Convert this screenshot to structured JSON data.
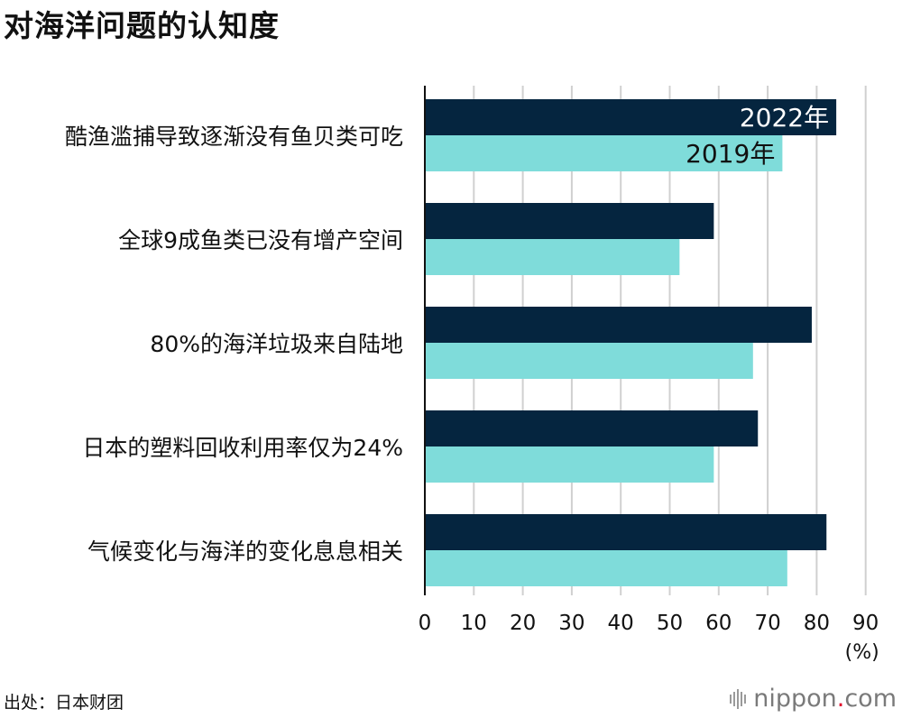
{
  "title": "对海洋问题的认知度",
  "source": "出处：日本财团",
  "brand": {
    "name": "nippon",
    "dot": ".",
    "tld": "com"
  },
  "colors": {
    "s2022": "#05253f",
    "s2019": "#7fdcda",
    "grid": "#d0d0d0",
    "axis": "#111111"
  },
  "chart_data": {
    "type": "bar",
    "orientation": "horizontal",
    "title": "对海洋问题的认知度",
    "categories": [
      "酷渔滥捕导致逐渐没有鱼贝类可吃",
      "全球9成鱼类已没有增产空间",
      "80%的海洋垃圾来自陆地",
      "日本的塑料回收利用率仅为24%",
      "气候变化与海洋的变化息息相关"
    ],
    "series": [
      {
        "name": "2022年",
        "values": [
          84,
          59,
          79,
          68,
          82
        ]
      },
      {
        "name": "2019年",
        "values": [
          73,
          52,
          67,
          59,
          74
        ]
      }
    ],
    "xlim": [
      0,
      90
    ],
    "xticks": [
      0,
      10,
      20,
      30,
      40,
      50,
      60,
      70,
      80,
      90
    ],
    "xunit": "(%)",
    "grid": true,
    "legend": "in-bar labels on first category"
  }
}
